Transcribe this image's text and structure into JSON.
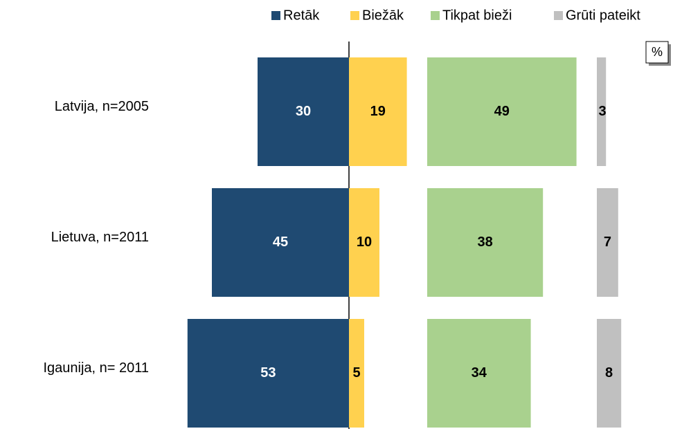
{
  "chart_data": {
    "type": "bar",
    "orientation": "horizontal",
    "categories": [
      "Latvija, n=2005",
      "Lietuva, n=2011",
      "Igaunija, n= 2011"
    ],
    "series": [
      {
        "name": "Retāk",
        "color": "#1f4a72",
        "values": [
          30,
          45,
          53
        ]
      },
      {
        "name": "Biežāk",
        "color": "#ffd14f",
        "values": [
          19,
          10,
          5
        ]
      },
      {
        "name": "Tikpat bieži",
        "color": "#a9d18e",
        "values": [
          49,
          38,
          34
        ]
      },
      {
        "name": "Grūti pateikt",
        "color": "#c0c0c0",
        "values": [
          3,
          7,
          8
        ]
      }
    ],
    "annotation": "%"
  }
}
